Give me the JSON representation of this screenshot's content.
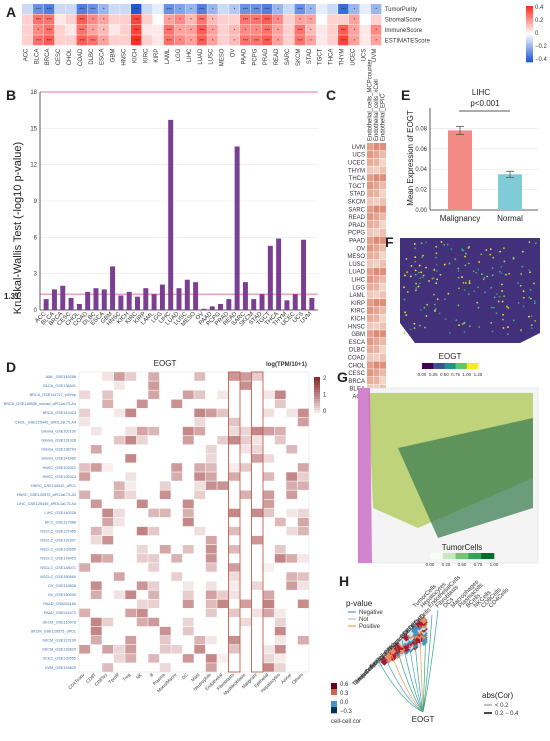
{
  "panels": {
    "A": "A",
    "B": "B",
    "C": "C",
    "D": "D",
    "E": "E",
    "F": "F",
    "G": "G",
    "H": "H"
  },
  "chart_data": [
    {
      "panel": "A",
      "type": "heatmap",
      "columns": [
        "ACC",
        "BLCA",
        "BRCA",
        "CESC",
        "CHOL",
        "COAD",
        "DLBC",
        "ESCA",
        "GBM",
        "HNSC",
        "KICH",
        "KIRC",
        "KIRP",
        "LAML",
        "LGG",
        "LIHC",
        "LUAD",
        "LUSC",
        "MESO",
        "OV",
        "PAAD",
        "PCPG",
        "PRAD",
        "READ",
        "SARC",
        "SKCM",
        "STAD",
        "TGCT",
        "THCA",
        "THYM",
        "UCEC",
        "UCS",
        "UVM"
      ],
      "rows": [
        "TumorPurity",
        "StromalScore",
        "ImmuneScore",
        "ESTIMATEScore"
      ],
      "values": [
        [
          -0.1,
          -0.3,
          -0.35,
          -0.1,
          -0.1,
          -0.35,
          -0.3,
          -0.2,
          -0.1,
          -0.1,
          -0.45,
          -0.1,
          -0.05,
          -0.3,
          -0.25,
          -0.2,
          -0.35,
          -0.2,
          -0.1,
          -0.15,
          -0.3,
          -0.3,
          -0.35,
          -0.2,
          -0.1,
          -0.3,
          -0.2,
          -0.05,
          -0.1,
          -0.4,
          -0.2,
          -0.05,
          -0.2
        ],
        [
          0.1,
          0.3,
          0.3,
          0.05,
          0.1,
          0.35,
          0.25,
          0.2,
          0.1,
          0.1,
          0.4,
          0.1,
          0.0,
          0.2,
          0.25,
          0.15,
          0.3,
          0.15,
          0.1,
          0.1,
          0.3,
          0.3,
          0.35,
          0.25,
          0.1,
          0.2,
          0.2,
          0.0,
          0.1,
          0.1,
          0.2,
          0.0,
          0.1
        ],
        [
          0.1,
          0.25,
          0.3,
          0.1,
          0.05,
          0.3,
          0.2,
          0.15,
          0.05,
          0.1,
          0.4,
          0.05,
          0.05,
          0.3,
          0.2,
          0.2,
          0.35,
          0.2,
          0.1,
          0.15,
          0.25,
          0.25,
          0.3,
          0.2,
          0.1,
          0.3,
          0.15,
          0.05,
          0.1,
          0.35,
          0.2,
          0.05,
          0.25
        ],
        [
          0.1,
          0.3,
          0.35,
          0.1,
          0.1,
          0.35,
          0.3,
          0.2,
          0.1,
          0.1,
          0.45,
          0.1,
          0.05,
          0.3,
          0.25,
          0.2,
          0.35,
          0.2,
          0.1,
          0.15,
          0.3,
          0.3,
          0.35,
          0.2,
          0.1,
          0.3,
          0.2,
          0.05,
          0.1,
          0.4,
          0.2,
          0.05,
          0.2
        ]
      ],
      "legend_ticks": [
        "0.4",
        "0.2",
        "0",
        "−0.2",
        "−0.4"
      ]
    },
    {
      "panel": "B",
      "type": "bar",
      "categories": [
        "ACC",
        "BLCA",
        "BRCA",
        "CESC",
        "CHOL",
        "COAD",
        "DLBC",
        "ESCA",
        "GBM",
        "HNSC",
        "KICH",
        "KIRC",
        "KIRP",
        "LAML",
        "LGG",
        "LIHC",
        "LUAD",
        "LUSC",
        "MESO",
        "OV",
        "PAAD",
        "PCPG",
        "PRAD",
        "READ",
        "SARC",
        "SKCM",
        "STAD",
        "TGCT",
        "THCA",
        "THYM",
        "UCEC",
        "UCS",
        "UVM"
      ],
      "values": [
        0.9,
        1.7,
        2.0,
        1.0,
        0.5,
        1.5,
        1.8,
        1.7,
        3.6,
        1.2,
        1.5,
        1.1,
        1.8,
        1.3,
        2.1,
        15.7,
        1.8,
        2.5,
        2.3,
        0.1,
        0.3,
        0.5,
        0.9,
        13.5,
        2.3,
        0.9,
        1.3,
        5.3,
        5.9,
        0.8,
        1.3,
        5.8,
        1.0
      ],
      "ylabel": "Kruskal-Wallis Test (-log10 p-value)",
      "yticks": [
        0,
        3,
        6,
        9,
        12,
        15,
        18
      ],
      "ylim": [
        0,
        18
      ],
      "threshold": 1.31,
      "threshold_label": "1.31"
    },
    {
      "panel": "C",
      "type": "heatmap",
      "columns": [
        "Endothelial_cells_MCPcounter",
        "Endothelial_cells_xCell",
        "Endothelial_EPIC"
      ],
      "rows": [
        "UVM",
        "UCS",
        "UCEC",
        "THYM",
        "THCA",
        "TGCT",
        "STAD",
        "SKCM",
        "SARC",
        "READ",
        "PRAD",
        "PCPG",
        "PAAD",
        "OV",
        "MESO",
        "LUSC",
        "LUAD",
        "LIHC",
        "LGG",
        "LAML",
        "KIRP",
        "KIRC",
        "KICH",
        "HNSC",
        "GBM",
        "ESCA",
        "DLBC",
        "COAD",
        "CHOL",
        "CESC",
        "BRCA",
        "BLCA",
        "ACC"
      ]
    },
    {
      "panel": "E",
      "type": "bar",
      "title": "LIHC",
      "annotation": "p<0.001",
      "ylabel": "Mean Expression of EOGT",
      "categories": [
        "Malignancy",
        "Normal"
      ],
      "values": [
        0.078,
        0.035
      ],
      "errors": [
        0.004,
        0.003
      ],
      "colors": [
        "#f08a82",
        "#7fcbd6"
      ],
      "yticks": [
        "0.00",
        "0.02",
        "0.04",
        "0.06",
        "0.08"
      ],
      "ylim": [
        0,
        0.1
      ]
    },
    {
      "panel": "F",
      "type": "scatter",
      "legend_title": "EOGT",
      "legend_ticks": [
        "0.00",
        "0.25",
        "0.50",
        "0.75",
        "1.00",
        "1.25"
      ]
    },
    {
      "panel": "G",
      "type": "scatter",
      "legend_title": "TumorCells",
      "legend_ticks": [
        "0.00",
        "0.25",
        "0.50",
        "0.75",
        "1.00"
      ]
    },
    {
      "panel": "D",
      "type": "heatmap",
      "title": "EOGT",
      "legend_title": "log(TPM/10+1)",
      "legend_ticks": [
        "2",
        "1",
        "0"
      ],
      "datasets": [
        "AML_GSE116256",
        "BLCA_GSE138441",
        "BRCA_GSE114727_inDrop",
        "BRCA_GSE138536_mouse_aPD1aCTLA4",
        "BRCA_GSE143423",
        "CHOL_GSE125449_aPDL1aCTLA4",
        "Glioma_GSE102130",
        "Glioma_GSE131928",
        "Glioma_GSE138794",
        "Glioma_GSE141982",
        "HNSC_GSE103322",
        "HNSC_GSE139324",
        "HNSC_GSE140042_aPD1",
        "HNSC_GSE120575_aPD1aCTLA4",
        "LIHC_GSE125449_aPDL1aCTLA4",
        "LIHC_GSE140228",
        "MCC_GSE117988",
        "NSCLC_GSE127465",
        "NSCLC_GSE131907",
        "NSCLC_GSE139555",
        "NSCLC_GSE143423",
        "NSCLC_GSE148071",
        "NSCLC_GSE150660",
        "OV_GSE118828",
        "OV_GSE130000",
        "PAAD_CRA001160",
        "PAAD_GSE111672",
        "SKCM_GSE115978",
        "SKCM_GSE120575_aPD1",
        "SKCM_GSE123139",
        "SKCM_GSE139829",
        "UCEC_GSE139555",
        "UVM_GSE139829"
      ],
      "cell_types": [
        "CD4Tconv",
        "CD8T",
        "CD8Tex",
        "Tprolif",
        "Treg",
        "NK",
        "B",
        "Plasma",
        "Mono/Macro",
        "DC",
        "Mast",
        "Neutrophils",
        "Endothelial",
        "Fibroblasts",
        "Myofibroblasts",
        "Malignant",
        "Epithelial",
        "Hepatocytes",
        "Acinar",
        "Others"
      ]
    },
    {
      "panel": "H",
      "type": "heatmap",
      "labels": [
        "TumorCells",
        "Hepatocytes",
        "EndothelialCells",
        "Fibroblasts",
        "DCs",
        "Macrophages",
        "Plasmacells",
        "BCells",
        "NKCells",
        "CD8Cells",
        "CD4Cells"
      ],
      "target": "EOGT",
      "pvalue_title": "p-value",
      "pvalue_items": [
        "Negative",
        "Not",
        "Positive"
      ],
      "pvalue_colors": [
        "#4c9ad8",
        "#bdbdbd",
        "#e3a04a"
      ],
      "corr_legend_title": "cell-cell cor",
      "corr_ticks": [
        "0.6",
        "0.3",
        "0.0",
        "−0.3"
      ],
      "abs_title": "abs(Cor)",
      "abs_items": [
        "< 0.2",
        "0.2 − 0.4"
      ]
    }
  ]
}
